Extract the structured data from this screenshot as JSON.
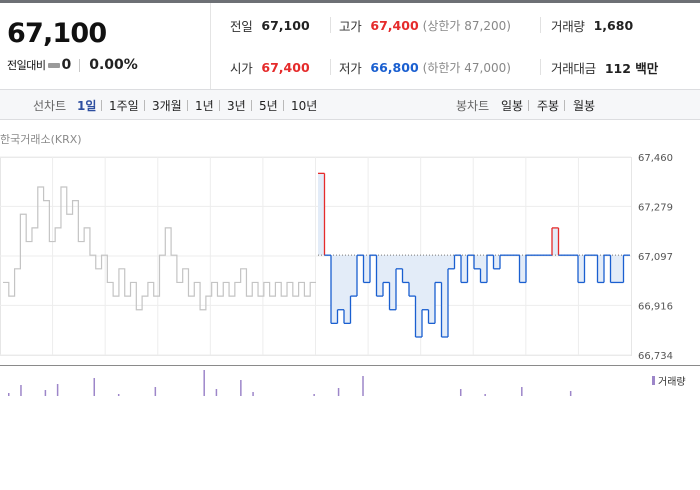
{
  "header": {
    "current_price": "67,100",
    "change_label": "전일대비",
    "change_icon": "flat-dash-icon",
    "change_value": "0",
    "change_rate": "0.00%"
  },
  "info": {
    "prev_close": {
      "label": "전일",
      "value": "67,100"
    },
    "high": {
      "label": "고가",
      "value": "67,400",
      "sub": "(상한가 87,200)"
    },
    "volume": {
      "label": "거래량",
      "value": "1,680"
    },
    "open": {
      "label": "시가",
      "value": "67,400"
    },
    "low": {
      "label": "저가",
      "value": "66,800",
      "sub": "(하한가 47,000)"
    },
    "trade_amount": {
      "label": "거래대금",
      "value": "112 백만"
    }
  },
  "toolbar": {
    "line_label": "선차트",
    "periods": [
      "1일",
      "1주일",
      "3개월",
      "1년",
      "3년",
      "5년",
      "10년"
    ],
    "active_period": "1일",
    "candle_label": "봉차트",
    "candle_periods": [
      "일봉",
      "주봉",
      "월봉"
    ]
  },
  "chart": {
    "title": "한국거래소(KRX)",
    "volume_legend": "거래량",
    "y_ticks": [
      "67,460",
      "67,279",
      "67,097",
      "66,916",
      "66,734"
    ],
    "colors": {
      "up": "#e52b2b",
      "down": "#1a5fd0",
      "prev_day": "#c4c4c4",
      "volume": "#9d86c9",
      "fill": "#e3ecf8"
    }
  },
  "chart_data": {
    "type": "line",
    "title": "한국거래소(KRX)",
    "ylim": [
      66734,
      67460
    ],
    "y_ticks": [
      67460,
      67279,
      67097,
      66916,
      66734
    ],
    "baseline": 67100,
    "grid": true,
    "series": [
      {
        "role": "previous-session",
        "values": [
          67000,
          66950,
          67050,
          67250,
          67150,
          67200,
          67350,
          67300,
          67150,
          67200,
          67350,
          67250,
          67300,
          67150,
          67200,
          67100,
          67050,
          67100,
          67000,
          66950,
          67050,
          66950,
          67000,
          66900,
          66950,
          67000,
          66950,
          67100,
          67200,
          67100,
          67000,
          67050,
          66950,
          67000,
          66900,
          66950,
          67000,
          66950,
          67000,
          66950,
          67000,
          67050,
          66950,
          67000,
          66950,
          67000,
          66950,
          67000,
          66950,
          67000,
          66950,
          67000,
          66950,
          67000
        ]
      },
      {
        "role": "today",
        "values": [
          67400,
          67100,
          66850,
          66900,
          66850,
          66950,
          67100,
          67000,
          67100,
          66950,
          67000,
          66900,
          67050,
          67000,
          66950,
          66800,
          66900,
          66850,
          67000,
          66800,
          67050,
          67100,
          67000,
          67100,
          67050,
          67000,
          67100,
          67050,
          67100,
          67100,
          67100,
          67000,
          67100,
          67100,
          67100,
          67100,
          67200,
          67100,
          67100,
          67100,
          67000,
          67100,
          67100,
          67000,
          67100,
          67000,
          67000,
          67100
        ]
      }
    ],
    "volume": {
      "name": "거래량",
      "values": [
        3,
        11,
        0,
        6,
        12,
        0,
        0,
        18,
        0,
        2,
        0,
        0,
        9,
        0,
        0,
        0,
        26,
        7,
        0,
        16,
        4,
        0,
        0,
        0,
        0,
        2,
        0,
        8,
        0,
        20,
        0,
        0,
        0,
        0,
        0,
        0,
        0,
        7,
        0,
        2,
        0,
        0,
        9,
        0,
        0,
        0,
        5,
        0,
        0,
        0,
        0
      ]
    }
  }
}
